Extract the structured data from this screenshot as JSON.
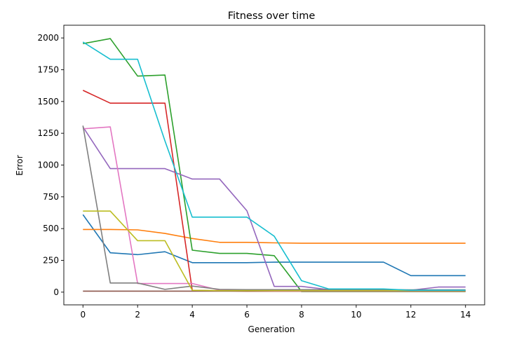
{
  "chart_data": {
    "type": "line",
    "title": "Fitness over time",
    "xlabel": "Generation",
    "ylabel": "Error",
    "xlim": [
      -0.7,
      14.7
    ],
    "ylim": [
      -100,
      2100
    ],
    "xticks": [
      0,
      2,
      4,
      6,
      8,
      10,
      12,
      14
    ],
    "yticks": [
      0,
      250,
      500,
      750,
      1000,
      1250,
      1500,
      1750,
      2000
    ],
    "grid": false,
    "x": [
      0,
      1,
      2,
      3,
      4,
      5,
      6,
      7,
      8,
      9,
      10,
      11,
      12,
      13,
      14
    ],
    "series": [
      {
        "color": "#1f77b4",
        "values": [
          610,
          310,
          295,
          318,
          232,
          232,
          232,
          236,
          236,
          236,
          236,
          236,
          130,
          130,
          130
        ]
      },
      {
        "color": "#ff7f0e",
        "values": [
          493,
          493,
          490,
          462,
          422,
          392,
          392,
          388,
          385,
          385,
          385,
          385,
          385,
          385,
          385
        ]
      },
      {
        "color": "#2ca02c",
        "values": [
          1955,
          1995,
          1700,
          1708,
          330,
          305,
          305,
          287,
          5,
          5,
          5,
          5,
          5,
          5,
          5
        ]
      },
      {
        "color": "#d62728",
        "values": [
          1588,
          1487,
          1487,
          1487,
          15,
          10,
          8,
          8,
          8,
          8,
          8,
          8,
          8,
          8,
          8
        ]
      },
      {
        "color": "#9467bd",
        "values": [
          1300,
          972,
          972,
          972,
          890,
          890,
          640,
          45,
          45,
          20,
          20,
          20,
          15,
          40,
          40
        ]
      },
      {
        "color": "#8c564b",
        "values": [
          8,
          8,
          8,
          8,
          8,
          8,
          8,
          8,
          8,
          8,
          8,
          8,
          8,
          8,
          8
        ]
      },
      {
        "color": "#e377c2",
        "values": [
          1285,
          1300,
          68,
          68,
          68,
          15,
          12,
          10,
          10,
          10,
          10,
          10,
          10,
          10,
          10
        ]
      },
      {
        "color": "#7f7f7f",
        "values": [
          1310,
          72,
          72,
          22,
          48,
          22,
          20,
          20,
          20,
          20,
          20,
          20,
          18,
          18,
          18
        ]
      },
      {
        "color": "#bcbd22",
        "values": [
          638,
          638,
          405,
          405,
          15,
          12,
          12,
          12,
          12,
          12,
          12,
          12,
          12,
          12,
          12
        ]
      },
      {
        "color": "#17becf",
        "values": [
          1968,
          1832,
          1832,
          1190,
          590,
          590,
          590,
          440,
          90,
          25,
          25,
          25,
          15,
          15,
          15
        ]
      }
    ]
  }
}
